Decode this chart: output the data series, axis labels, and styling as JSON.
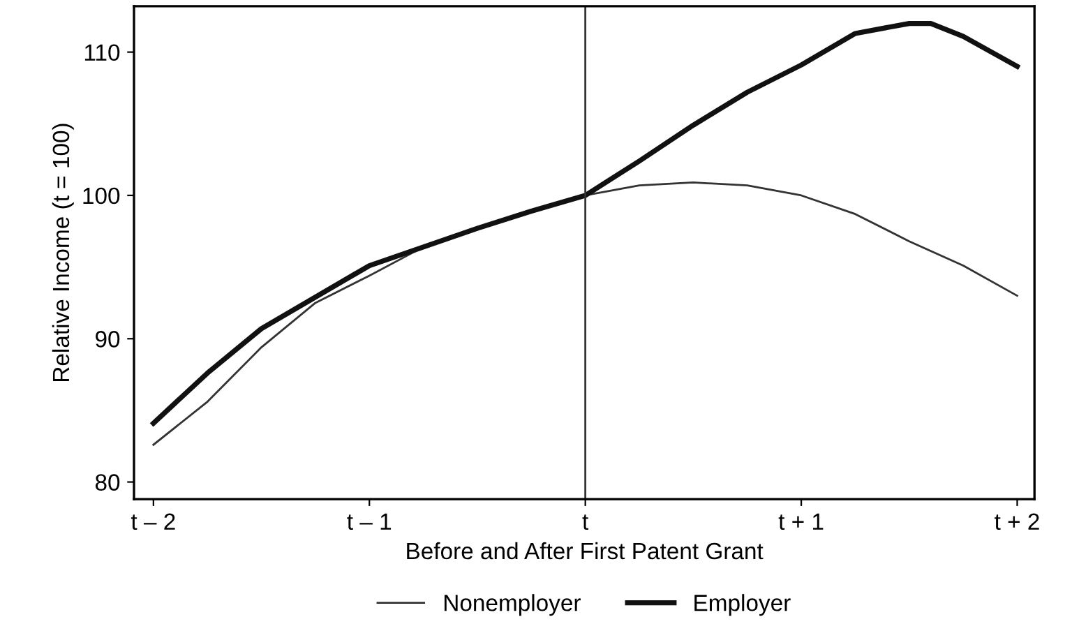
{
  "chart_data": {
    "type": "line",
    "xlabel": "Before and After First Patent Grant",
    "ylabel": "Relative Income (t = 100)",
    "xlim": [
      -2.09,
      2.08
    ],
    "xticks": [
      {
        "value": -2,
        "label": "t – 2"
      },
      {
        "value": -1,
        "label": "t – 1"
      },
      {
        "value": 0,
        "label": "t"
      },
      {
        "value": 1,
        "label": "t + 1"
      },
      {
        "value": 2,
        "label": "t + 2"
      }
    ],
    "ylim": [
      78.8,
      113.2
    ],
    "yticks": [
      80,
      90,
      100,
      110
    ],
    "series": [
      {
        "name": "Nonemployer",
        "color": "#333333",
        "x": [
          -2,
          -1.75,
          -1.5,
          -1.25,
          -1,
          -0.75,
          -0.5,
          -0.25,
          0,
          0.25,
          0.5,
          0.75,
          1,
          1.25,
          1.5,
          1.75,
          2
        ],
        "values": [
          82.6,
          85.6,
          89.4,
          92.5,
          94.4,
          96.4,
          97.7,
          98.9,
          100,
          100.7,
          100.9,
          100.7,
          100.0,
          98.7,
          96.8,
          95.1,
          93.0
        ]
      },
      {
        "name": "Employer",
        "color": "#111111",
        "x": [
          -2,
          -1.75,
          -1.5,
          -1,
          -0.5,
          -0.25,
          0,
          0.25,
          0.5,
          0.75,
          1,
          1.25,
          1.5,
          1.6,
          1.75,
          2
        ],
        "values": [
          84.1,
          87.6,
          90.7,
          95.1,
          97.7,
          98.9,
          100,
          102.4,
          104.9,
          107.2,
          109.1,
          111.3,
          112.0,
          112.0,
          111.1,
          109.0
        ]
      }
    ],
    "ref_lines": [
      {
        "axis": "x",
        "value": 0,
        "color": "#333333"
      }
    ],
    "grid": false,
    "legend": "bottom"
  }
}
